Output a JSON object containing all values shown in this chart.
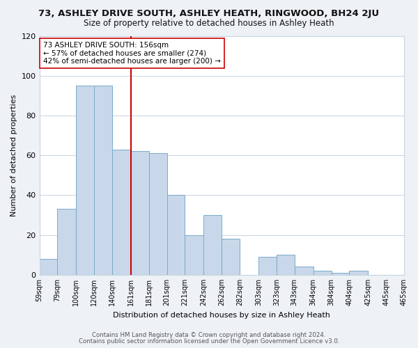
{
  "title": "73, ASHLEY DRIVE SOUTH, ASHLEY HEATH, RINGWOOD, BH24 2JU",
  "subtitle": "Size of property relative to detached houses in Ashley Heath",
  "xlabel": "Distribution of detached houses by size in Ashley Heath",
  "ylabel": "Number of detached properties",
  "bar_color": "#c8d8ea",
  "bar_edge_color": "#7aaac8",
  "bins": [
    59,
    79,
    100,
    120,
    140,
    161,
    181,
    201,
    221,
    242,
    262,
    282,
    303,
    323,
    343,
    364,
    384,
    404,
    425,
    445,
    465
  ],
  "bin_labels": [
    "59sqm",
    "79sqm",
    "100sqm",
    "120sqm",
    "140sqm",
    "161sqm",
    "181sqm",
    "201sqm",
    "221sqm",
    "242sqm",
    "262sqm",
    "282sqm",
    "303sqm",
    "323sqm",
    "343sqm",
    "364sqm",
    "384sqm",
    "404sqm",
    "425sqm",
    "445sqm",
    "465sqm"
  ],
  "values": [
    8,
    33,
    95,
    95,
    63,
    62,
    61,
    40,
    20,
    30,
    18,
    0,
    9,
    10,
    4,
    2,
    1,
    2,
    0,
    0
  ],
  "vline_x": 161,
  "vline_color": "#cc0000",
  "annotation_line1": "73 ASHLEY DRIVE SOUTH: 156sqm",
  "annotation_line2": "← 57% of detached houses are smaller (274)",
  "annotation_line3": "42% of semi-detached houses are larger (200) →",
  "ylim": [
    0,
    120
  ],
  "yticks": [
    0,
    20,
    40,
    60,
    80,
    100,
    120
  ],
  "footer1": "Contains HM Land Registry data © Crown copyright and database right 2024.",
  "footer2": "Contains public sector information licensed under the Open Government Licence v3.0.",
  "bg_color": "#eef2f7",
  "plot_bg_color": "#ffffff",
  "grid_color": "#c8d4e0"
}
